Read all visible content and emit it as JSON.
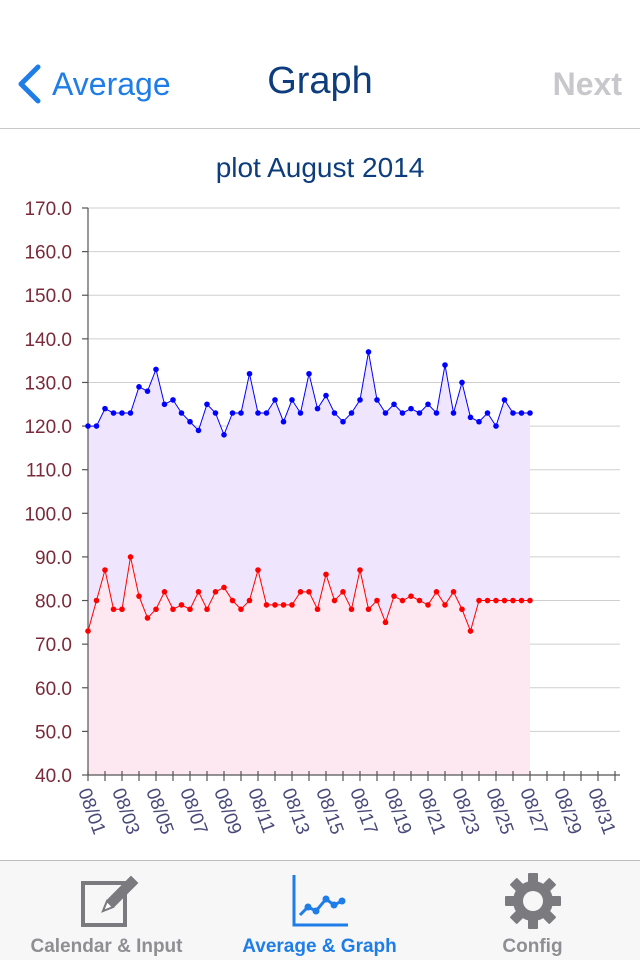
{
  "navbar": {
    "back_label": "Average",
    "title": "Graph",
    "next_label": "Next"
  },
  "tabbar": {
    "tabs": [
      {
        "label": "Calendar & Input",
        "icon": "calendar-edit-icon",
        "active": false
      },
      {
        "label": "Average & Graph",
        "icon": "graph-icon",
        "active": true
      },
      {
        "label": "Config",
        "icon": "gear-icon",
        "active": false
      }
    ]
  },
  "colors": {
    "accent": "#1f7de8",
    "title": "#0d3d7c",
    "inactive": "#8e8e93",
    "systolic_line": "#0000ff",
    "systolic_fill": "#efe6fd",
    "diastolic_line": "#ff0000",
    "diastolic_fill": "#fde7f1"
  },
  "chart_data": {
    "type": "line",
    "title": "plot August 2014",
    "ylim": [
      40,
      170
    ],
    "yticks": [
      "40.0",
      "50.0",
      "60.0",
      "70.0",
      "80.0",
      "90.0",
      "100.0",
      "110.0",
      "120.0",
      "130.0",
      "140.0",
      "150.0",
      "160.0",
      "170.0"
    ],
    "xlim_days": [
      1,
      32
    ],
    "xticks": [
      "08/01",
      "08/03",
      "08/05",
      "08/07",
      "08/09",
      "08/11",
      "08/13",
      "08/15",
      "08/17",
      "08/19",
      "08/21",
      "08/23",
      "08/25",
      "08/27",
      "08/29",
      "08/31"
    ],
    "grid": true,
    "series": [
      {
        "x": [
          1,
          1.5,
          2,
          2.5,
          3,
          3.5,
          4,
          4.5,
          5,
          5.5,
          6,
          6.5,
          7,
          7.5,
          8,
          8.5,
          9,
          9.5,
          10,
          10.5,
          11,
          11.5,
          12,
          12.5,
          13,
          13.5,
          14,
          14.5,
          15,
          15.5,
          16,
          16.5,
          17,
          17.5,
          18,
          18.5,
          19,
          19.5,
          20,
          20.5,
          21,
          21.5,
          22,
          22.5,
          23,
          23.5,
          24,
          24.5,
          25,
          25.5,
          26,
          26.5,
          27
        ],
        "values": [
          120,
          120,
          124,
          123,
          123,
          123,
          129,
          128,
          133,
          125,
          126,
          123,
          121,
          119,
          125,
          123,
          118,
          123,
          123,
          132,
          123,
          123,
          126,
          121,
          126,
          123,
          132,
          124,
          127,
          123,
          121,
          123,
          126,
          137,
          126,
          123,
          125,
          123,
          124,
          123,
          125,
          123,
          134,
          123,
          130,
          122,
          121,
          123,
          120,
          126,
          123,
          123,
          123
        ]
      },
      {
        "x": [
          1,
          1.5,
          2,
          2.5,
          3,
          3.5,
          4,
          4.5,
          5,
          5.5,
          6,
          6.5,
          7,
          7.5,
          8,
          8.5,
          9,
          9.5,
          10,
          10.5,
          11,
          11.5,
          12,
          12.5,
          13,
          13.5,
          14,
          14.5,
          15,
          15.5,
          16,
          16.5,
          17,
          17.5,
          18,
          18.5,
          19,
          19.5,
          20,
          20.5,
          21,
          21.5,
          22,
          22.5,
          23,
          23.5,
          24,
          24.5,
          25,
          25.5,
          26,
          26.5,
          27
        ],
        "values": [
          73,
          80,
          87,
          78,
          78,
          90,
          81,
          76,
          78,
          82,
          78,
          79,
          78,
          82,
          78,
          82,
          83,
          80,
          78,
          80,
          87,
          79,
          79,
          79,
          79,
          82,
          82,
          78,
          86,
          80,
          82,
          78,
          87,
          78,
          80,
          75,
          81,
          80,
          81,
          80,
          79,
          82,
          79,
          82,
          78,
          73,
          80,
          80,
          80,
          80,
          80,
          80,
          80
        ]
      }
    ]
  }
}
